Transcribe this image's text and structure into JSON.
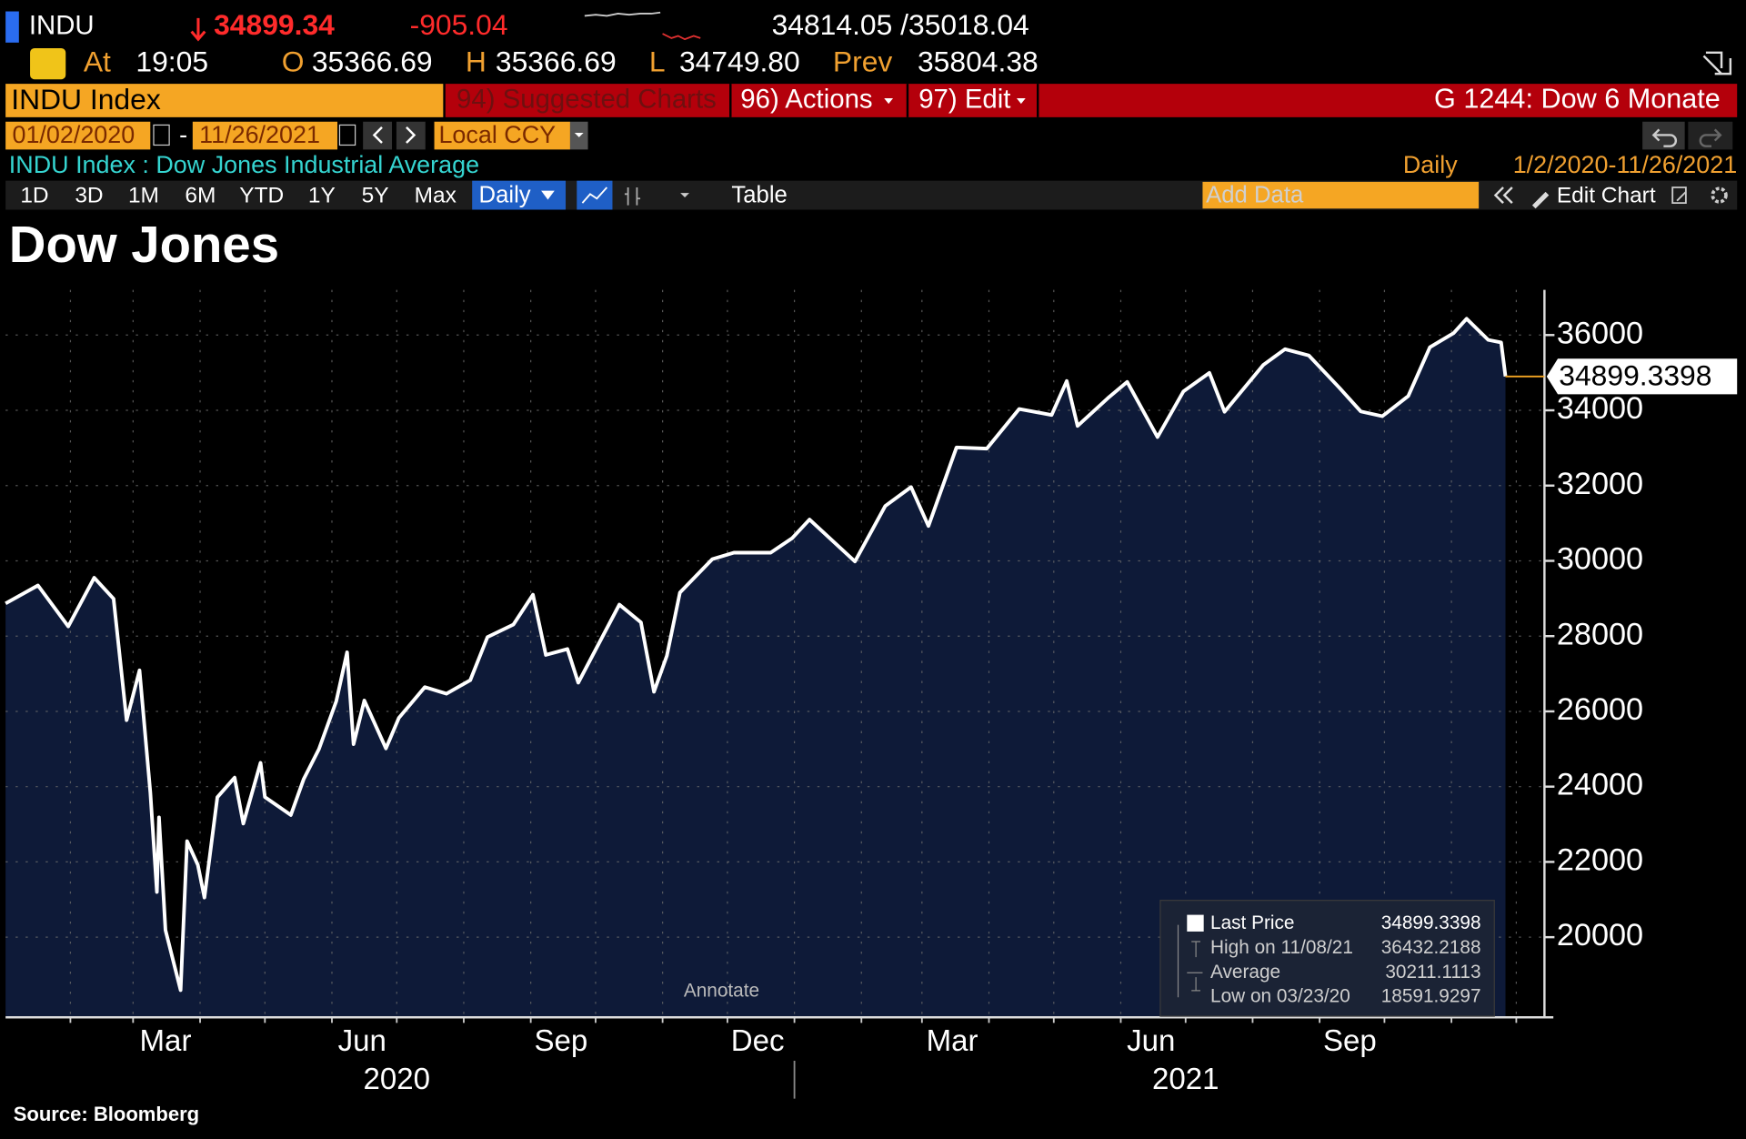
{
  "header": {
    "ticker": "INDU",
    "last": "34899.34",
    "change": "-905.04",
    "bid_ask": "34814.05 /35018.04",
    "time_label": "At",
    "time": "19:05",
    "open_label": "O",
    "open": "35366.69",
    "high_label": "H",
    "high": "35366.69",
    "low_label": "L",
    "low": "34749.80",
    "prev_label": "Prev",
    "prev": "35804.38"
  },
  "toolbar": {
    "security": "INDU Index",
    "suggested": "94) Suggested Charts",
    "actions": "96) Actions",
    "edit": "97) Edit",
    "page_title": "G 1244: Dow 6 Monate",
    "start_date": "01/02/2020",
    "date_separator": "-",
    "end_date": "11/26/2021",
    "currency": "Local CCY",
    "description": "INDU Index : Dow Jones Industrial Average",
    "frequency": "Daily",
    "range": "1/2/2020-11/26/2021",
    "periods": [
      "1D",
      "3D",
      "1M",
      "6M",
      "YTD",
      "1Y",
      "5Y",
      "Max"
    ],
    "period": "Daily",
    "table": "Table",
    "add_data": "Add Data",
    "edit_chart": "Edit Chart"
  },
  "chart_data": {
    "type": "line",
    "title": "Dow Jones",
    "source": "Source: Bloomberg",
    "annotate": "Annotate",
    "x": [
      "2020-01-02",
      "2020-01-17",
      "2020-01-31",
      "2020-02-12",
      "2020-02-21",
      "2020-02-27",
      "2020-03-04",
      "2020-03-09",
      "2020-03-12",
      "2020-03-13",
      "2020-03-16",
      "2020-03-23",
      "2020-03-26",
      "2020-03-31",
      "2020-04-03",
      "2020-04-09",
      "2020-04-17",
      "2020-04-21",
      "2020-04-29",
      "2020-05-01",
      "2020-05-13",
      "2020-05-19",
      "2020-05-26",
      "2020-06-03",
      "2020-06-08",
      "2020-06-11",
      "2020-06-16",
      "2020-06-26",
      "2020-07-02",
      "2020-07-14",
      "2020-07-24",
      "2020-08-04",
      "2020-08-12",
      "2020-08-24",
      "2020-09-02",
      "2020-09-08",
      "2020-09-18",
      "2020-09-23",
      "2020-10-12",
      "2020-10-22",
      "2020-10-28",
      "2020-11-03",
      "2020-11-09",
      "2020-11-24",
      "2020-12-04",
      "2020-12-21",
      "2020-12-31",
      "2021-01-08",
      "2021-01-29",
      "2021-02-12",
      "2021-02-24",
      "2021-03-04",
      "2021-03-17",
      "2021-03-31",
      "2021-04-15",
      "2021-04-30",
      "2021-05-07",
      "2021-05-12",
      "2021-05-26",
      "2021-06-04",
      "2021-06-18",
      "2021-06-30",
      "2021-07-12",
      "2021-07-19",
      "2021-08-06",
      "2021-08-16",
      "2021-08-27",
      "2021-09-10",
      "2021-09-20",
      "2021-09-30",
      "2021-10-12",
      "2021-10-22",
      "2021-11-02",
      "2021-11-08",
      "2021-11-18",
      "2021-11-24",
      "2021-11-26"
    ],
    "series": [
      {
        "name": "Last Price",
        "color": "#ffffff",
        "fill": "#0e1a38",
        "values": [
          28868,
          29348,
          28256,
          29551,
          28992,
          25766,
          27090,
          23851,
          21200,
          23185,
          20188,
          18592,
          22552,
          21917,
          21053,
          23719,
          24242,
          23018,
          24634,
          23724,
          23247,
          24206,
          24995,
          26270,
          27572,
          25128,
          26290,
          25016,
          25827,
          26643,
          26470,
          26828,
          27977,
          28308,
          29100,
          27500,
          27657,
          26763,
          28837,
          28364,
          26520,
          27480,
          29158,
          30046,
          30218,
          30216,
          30606,
          31098,
          29983,
          31458,
          31962,
          30924,
          33015,
          32982,
          34036,
          33875,
          34778,
          33587,
          34323,
          34756,
          33290,
          34503,
          34996,
          33962,
          35209,
          35625,
          35456,
          34608,
          33970,
          33844,
          34378,
          35677,
          36052,
          36432,
          35870,
          35804,
          34899
        ]
      }
    ],
    "xlim": [
      "2020-01-02",
      "2021-12-13"
    ],
    "xticks": [
      {
        "value": "2020-03-16",
        "label": "Mar"
      },
      {
        "value": "2020-06-15",
        "label": "Jun"
      },
      {
        "value": "2020-09-15",
        "label": "Sep"
      },
      {
        "value": "2020-12-15",
        "label": "Dec"
      },
      {
        "value": "2021-03-15",
        "label": "Mar"
      },
      {
        "value": "2021-06-15",
        "label": "Jun"
      },
      {
        "value": "2021-09-15",
        "label": "Sep"
      }
    ],
    "year_ticks": [
      {
        "value": "2020-07-01",
        "label": "2020"
      },
      {
        "value": "2021-07-01",
        "label": "2021"
      }
    ],
    "year_divider": "2021-01-01",
    "xgrid": [
      "2020-02-01",
      "2020-03-01",
      "2020-04-01",
      "2020-05-01",
      "2020-06-01",
      "2020-07-01",
      "2020-08-01",
      "2020-09-01",
      "2020-10-01",
      "2020-11-01",
      "2020-12-01",
      "2021-01-01",
      "2021-02-01",
      "2021-03-01",
      "2021-04-01",
      "2021-05-01",
      "2021-06-01",
      "2021-07-01",
      "2021-08-01",
      "2021-09-01",
      "2021-10-01",
      "2021-11-01",
      "2021-12-01"
    ],
    "ylim": [
      17900,
      37200
    ],
    "yticks": [
      20000,
      22000,
      24000,
      26000,
      28000,
      30000,
      32000,
      34000,
      36000
    ],
    "grid": true,
    "last_value": 34899.3398,
    "last_value_label": "34899.3398",
    "legend": [
      {
        "label": "Last Price",
        "value": "34899.3398"
      },
      {
        "label": "High on 11/08/21",
        "value": "36432.2188"
      },
      {
        "label": "Average",
        "value": "30211.1113"
      },
      {
        "label": "Low on 03/23/20",
        "value": "18591.9297"
      }
    ]
  }
}
